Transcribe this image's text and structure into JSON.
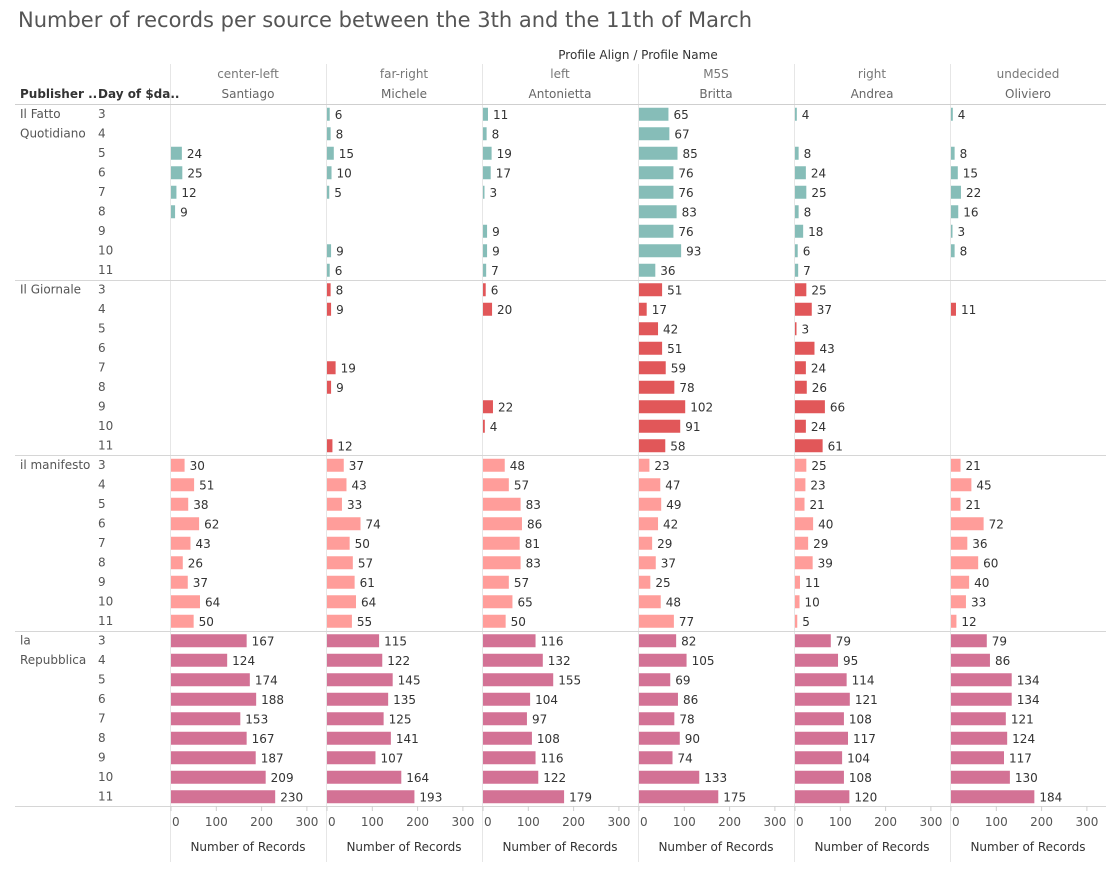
{
  "chart_data": {
    "type": "bar",
    "orientation": "horizontal",
    "title": "Number of records per source between the 3th and the 11th of March",
    "column_header": "Profile Align  /  Profile Name",
    "row_headers": [
      "Publisher ..",
      "Day of $da.."
    ],
    "days": [
      "3",
      "4",
      "5",
      "6",
      "7",
      "8",
      "9",
      "10",
      "11"
    ],
    "xlabel": "Number of Records",
    "xlim": [
      0,
      300
    ],
    "xticks": [
      "0",
      "100",
      "200",
      "300"
    ],
    "columns": [
      {
        "align": "center-left",
        "name": "Santiago"
      },
      {
        "align": "far-right",
        "name": "Michele"
      },
      {
        "align": "left",
        "name": "Antonietta"
      },
      {
        "align": "M5S",
        "name": "Britta"
      },
      {
        "align": "right",
        "name": "Andrea"
      },
      {
        "align": "undecided",
        "name": "Oliviero"
      }
    ],
    "publishers": [
      {
        "name": "Il Fatto Quotidiano",
        "label_lines": [
          "Il Fatto",
          "Quotidiano"
        ],
        "color": "#86bdb8",
        "values": [
          [
            null,
            null,
            24,
            25,
            12,
            9,
            null,
            null,
            null
          ],
          [
            6,
            8,
            15,
            10,
            5,
            null,
            null,
            9,
            6
          ],
          [
            11,
            8,
            19,
            17,
            3,
            null,
            9,
            9,
            7
          ],
          [
            65,
            67,
            85,
            76,
            76,
            83,
            76,
            93,
            36
          ],
          [
            4,
            null,
            8,
            24,
            25,
            8,
            18,
            6,
            7
          ],
          [
            4,
            null,
            8,
            15,
            22,
            16,
            3,
            8,
            null
          ]
        ]
      },
      {
        "name": "Il Giornale",
        "label_lines": [
          "Il Giornale"
        ],
        "color": "#e15759",
        "values": [
          [
            null,
            null,
            null,
            null,
            null,
            null,
            null,
            null,
            null
          ],
          [
            8,
            9,
            null,
            null,
            19,
            9,
            null,
            null,
            12
          ],
          [
            6,
            20,
            null,
            null,
            null,
            null,
            22,
            4,
            null
          ],
          [
            51,
            17,
            42,
            51,
            59,
            78,
            102,
            91,
            58
          ],
          [
            25,
            37,
            3,
            43,
            24,
            26,
            66,
            24,
            61
          ],
          [
            null,
            11,
            null,
            null,
            null,
            null,
            null,
            null,
            null
          ]
        ]
      },
      {
        "name": "il manifesto",
        "label_lines": [
          "il manifesto"
        ],
        "color": "#ff9d9a",
        "values": [
          [
            30,
            51,
            38,
            62,
            43,
            26,
            37,
            64,
            50
          ],
          [
            37,
            43,
            33,
            74,
            50,
            57,
            61,
            64,
            55
          ],
          [
            48,
            57,
            83,
            86,
            81,
            83,
            57,
            65,
            50
          ],
          [
            23,
            47,
            49,
            42,
            29,
            37,
            25,
            48,
            77
          ],
          [
            25,
            23,
            21,
            40,
            29,
            39,
            11,
            10,
            5
          ],
          [
            21,
            45,
            21,
            72,
            36,
            60,
            40,
            33,
            12
          ]
        ]
      },
      {
        "name": "la Repubblica",
        "label_lines": [
          "la",
          "Repubblica"
        ],
        "color": "#d37295",
        "values": [
          [
            167,
            124,
            174,
            188,
            153,
            167,
            187,
            209,
            230
          ],
          [
            115,
            122,
            145,
            135,
            125,
            141,
            107,
            164,
            193
          ],
          [
            116,
            132,
            155,
            104,
            97,
            108,
            116,
            122,
            179
          ],
          [
            82,
            105,
            69,
            86,
            78,
            90,
            74,
            133,
            175
          ],
          [
            79,
            95,
            114,
            121,
            108,
            117,
            104,
            108,
            120
          ],
          [
            79,
            86,
            134,
            134,
            121,
            124,
            117,
            130,
            184
          ]
        ]
      }
    ],
    "grid": false,
    "legend": "none"
  }
}
